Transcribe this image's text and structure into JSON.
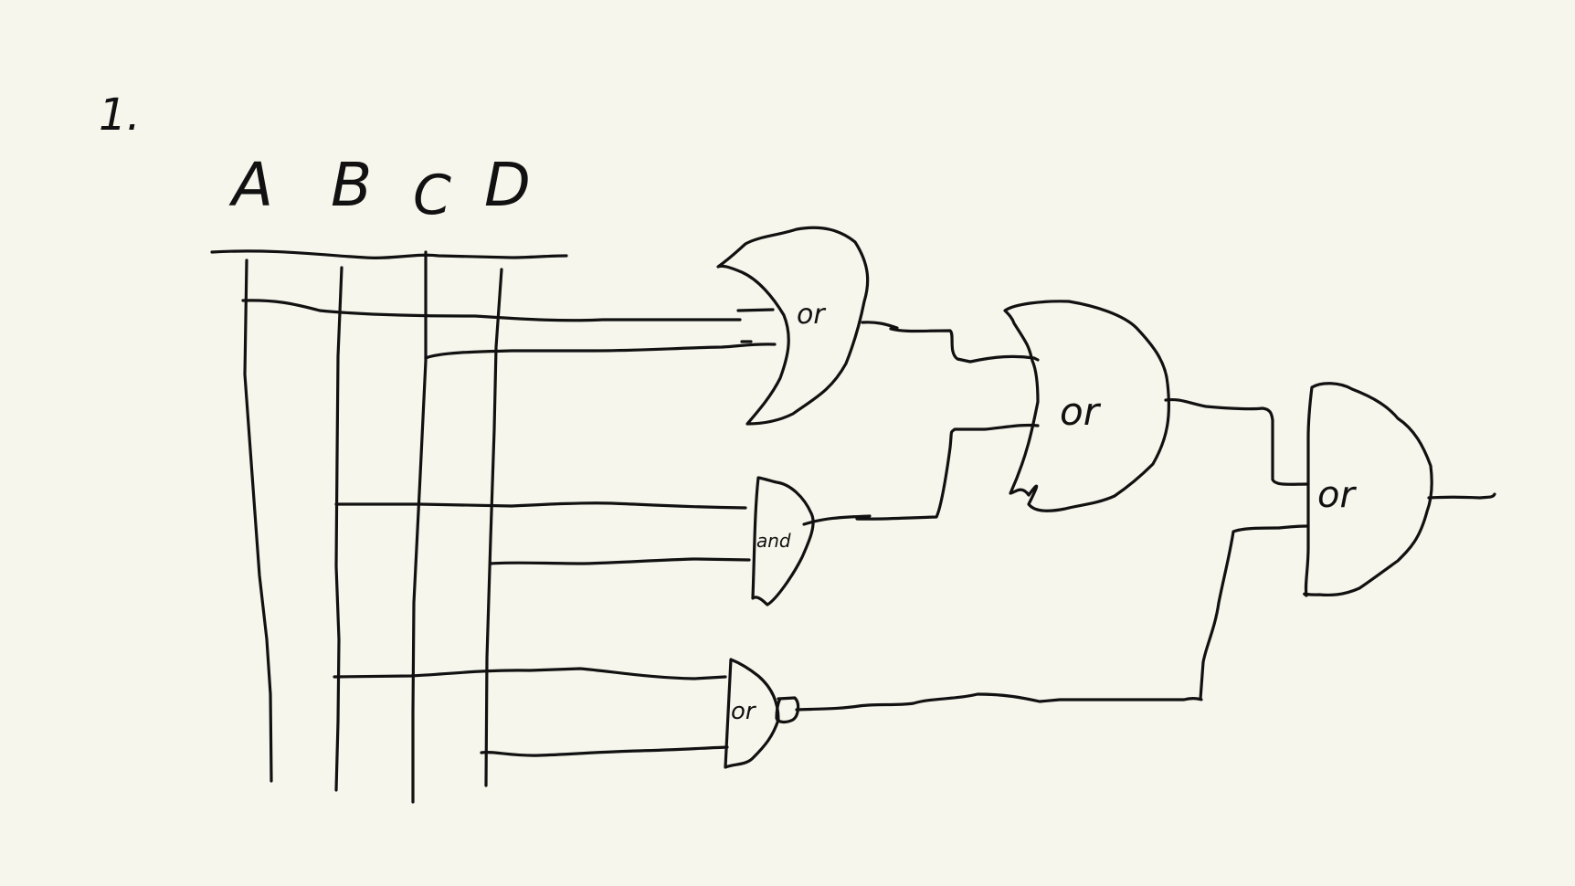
{
  "problem": {
    "number": "1."
  },
  "inputs": [
    "A",
    "B",
    "C",
    "D"
  ],
  "gates": [
    {
      "id": "g1",
      "label": "or"
    },
    {
      "id": "g2",
      "label": "and"
    },
    {
      "id": "g3",
      "label": "or"
    },
    {
      "id": "g4",
      "label": "or"
    },
    {
      "id": "g5",
      "label": "or"
    }
  ],
  "colors": {
    "ink": "#111111",
    "paper": "#f6f6ec"
  }
}
